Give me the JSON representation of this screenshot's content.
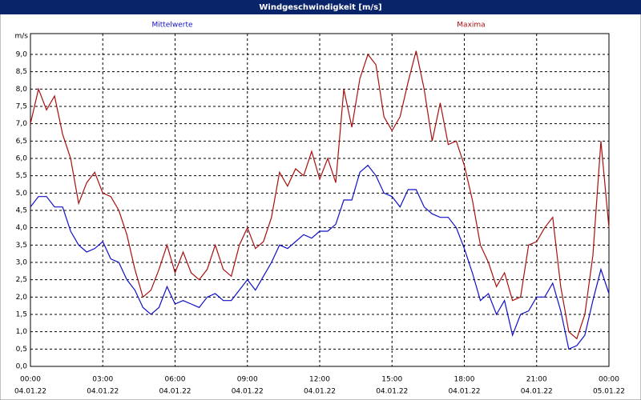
{
  "chart_data": {
    "type": "line",
    "title": "Windgeschwindigkeit [m/s]",
    "y_unit": "m/s",
    "x": [
      0,
      20,
      40,
      60,
      80,
      100,
      120,
      140,
      160,
      180,
      200,
      220,
      240,
      260,
      280,
      300,
      320,
      340,
      360,
      380,
      400,
      420,
      440,
      460,
      480,
      500,
      520,
      540,
      560,
      580,
      600,
      620,
      640,
      660,
      680,
      700,
      720,
      740,
      760,
      780,
      800,
      820,
      840,
      860,
      880,
      900,
      920,
      940,
      960,
      980,
      1000,
      1020,
      1040,
      1060,
      1080,
      1100,
      1120,
      1140,
      1160,
      1180,
      1200,
      1220,
      1240,
      1260,
      1280,
      1300,
      1320,
      1340,
      1360,
      1380,
      1400,
      1420,
      1440
    ],
    "series": [
      {
        "name": "Mittelwerte",
        "color": "#1010c8",
        "values": [
          4.6,
          4.9,
          4.9,
          4.6,
          4.6,
          3.9,
          3.5,
          3.3,
          3.4,
          3.6,
          3.1,
          3.0,
          2.5,
          2.2,
          1.7,
          1.5,
          1.7,
          2.3,
          1.8,
          1.9,
          1.8,
          1.7,
          2.0,
          2.1,
          1.9,
          1.9,
          2.2,
          2.5,
          2.2,
          2.6,
          3.0,
          3.5,
          3.4,
          3.6,
          3.8,
          3.7,
          3.9,
          3.9,
          4.1,
          4.8,
          4.8,
          5.6,
          5.8,
          5.5,
          5.0,
          4.9,
          4.6,
          5.1,
          5.1,
          4.6,
          4.4,
          4.3,
          4.3,
          4.0,
          3.4,
          2.7,
          1.9,
          2.1,
          1.5,
          1.9,
          0.9,
          1.5,
          1.6,
          2.0,
          2.0,
          2.4,
          1.6,
          0.5,
          0.6,
          0.9,
          1.9,
          2.8,
          2.1
        ]
      },
      {
        "name": "Maxima",
        "color": "#a81010",
        "values": [
          7.0,
          8.0,
          7.4,
          7.8,
          6.7,
          6.0,
          4.7,
          5.3,
          5.6,
          5.0,
          4.9,
          4.5,
          3.8,
          2.8,
          2.0,
          2.2,
          2.8,
          3.5,
          2.7,
          3.3,
          2.7,
          2.5,
          2.8,
          3.5,
          2.8,
          2.6,
          3.5,
          4.0,
          3.4,
          3.6,
          4.3,
          5.6,
          5.2,
          5.7,
          5.5,
          6.2,
          5.4,
          6.0,
          5.3,
          8.0,
          6.9,
          8.3,
          9.0,
          8.7,
          7.2,
          6.8,
          7.2,
          8.2,
          9.1,
          8.0,
          6.5,
          7.6,
          6.4,
          6.5,
          5.8,
          4.8,
          3.5,
          3.0,
          2.3,
          2.7,
          1.9,
          2.0,
          3.5,
          3.6,
          4.0,
          4.3,
          2.3,
          1.0,
          0.8,
          1.5,
          3.2,
          6.5,
          4.0
        ]
      }
    ],
    "xlim": [
      0,
      1440
    ],
    "xticks": [
      {
        "value": 0,
        "label": "00:00",
        "date": "04.01.22"
      },
      {
        "value": 180,
        "label": "03:00",
        "date": "04.01.22"
      },
      {
        "value": 360,
        "label": "06:00",
        "date": "04.01.22"
      },
      {
        "value": 540,
        "label": "09:00",
        "date": "04.01.22"
      },
      {
        "value": 720,
        "label": "12:00",
        "date": "04.01.22"
      },
      {
        "value": 900,
        "label": "15:00",
        "date": "04.01.22"
      },
      {
        "value": 1080,
        "label": "18:00",
        "date": "04.01.22"
      },
      {
        "value": 1260,
        "label": "21:00",
        "date": "04.01.22"
      },
      {
        "value": 1440,
        "label": "00:00",
        "date": "05.01.22"
      }
    ],
    "ylim": [
      0,
      9.6
    ],
    "yticks": [
      {
        "value": 0,
        "label": "0,0"
      },
      {
        "value": 0.5,
        "label": "0,5"
      },
      {
        "value": 1,
        "label": "1,0"
      },
      {
        "value": 1.5,
        "label": "1,5"
      },
      {
        "value": 2,
        "label": "2,0"
      },
      {
        "value": 2.5,
        "label": "2,5"
      },
      {
        "value": 3,
        "label": "3,0"
      },
      {
        "value": 3.5,
        "label": "3,5"
      },
      {
        "value": 4,
        "label": "4,0"
      },
      {
        "value": 4.5,
        "label": "4,5"
      },
      {
        "value": 5,
        "label": "5,0"
      },
      {
        "value": 5.5,
        "label": "5,5"
      },
      {
        "value": 6,
        "label": "6,0"
      },
      {
        "value": 6.5,
        "label": "6,5"
      },
      {
        "value": 7,
        "label": "7,0"
      },
      {
        "value": 7.5,
        "label": "7,5"
      },
      {
        "value": 8,
        "label": "8,0"
      },
      {
        "value": 8.5,
        "label": "8,5"
      },
      {
        "value": 9,
        "label": "9,0"
      }
    ],
    "grid": true
  }
}
